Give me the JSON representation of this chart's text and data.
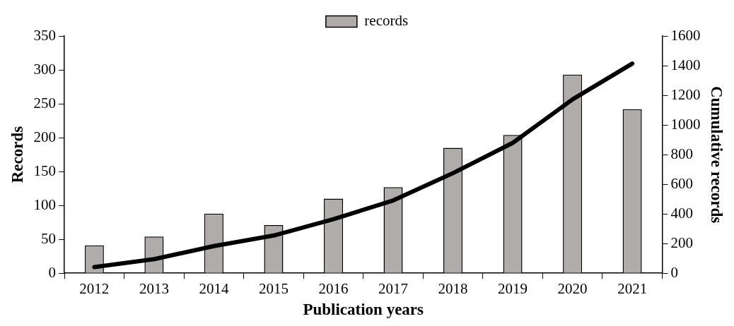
{
  "chart_data": {
    "type": "bar",
    "xlabel": "Publication years",
    "ylabel": "Records",
    "y2label": "Cumulative records",
    "categories": [
      "2012",
      "2013",
      "2014",
      "2015",
      "2016",
      "2017",
      "2018",
      "2019",
      "2020",
      "2021"
    ],
    "series": [
      {
        "name": "records",
        "color": "#b0acab",
        "values": [
          41,
          54,
          88,
          71,
          110,
          127,
          185,
          204,
          293,
          242
        ]
      },
      {
        "type": "line",
        "axis": "y2",
        "color": "#000000",
        "values": [
          41,
          95,
          183,
          254,
          364,
          491,
          675,
          879,
          1172,
          1414
        ]
      }
    ],
    "ylim": [
      0,
      350
    ],
    "yticks": [
      0,
      50,
      100,
      150,
      200,
      250,
      300,
      350
    ],
    "y2lim": [
      0,
      1600
    ],
    "y2ticks": [
      0,
      200,
      400,
      600,
      800,
      1000,
      1200,
      1400,
      1600
    ],
    "grid": false,
    "legend": "top",
    "marker": "none"
  }
}
